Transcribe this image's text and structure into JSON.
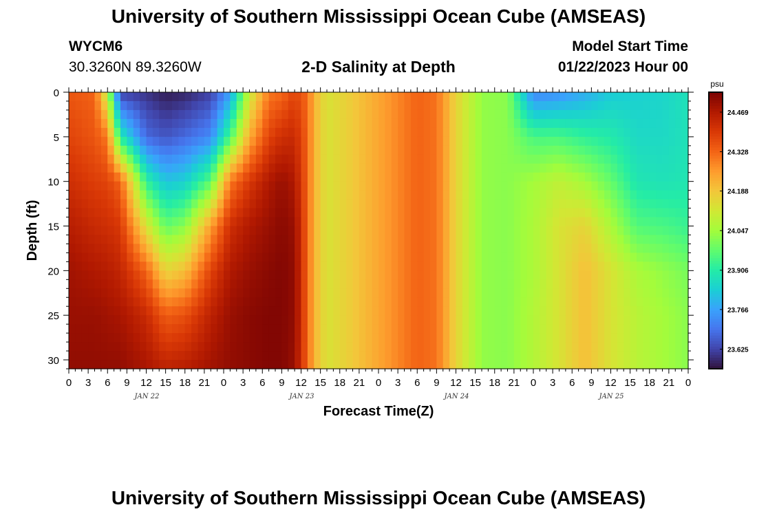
{
  "header": {
    "title": "University of Southern Mississippi Ocean Cube (AMSEAS)",
    "station_id": "WYCM6",
    "station_coords": "30.3260N  89.3260W",
    "plot_title": "2-D Salinity at Depth",
    "start_label": "Model Start Time",
    "start_value": "01/22/2023 Hour 00"
  },
  "footer": {
    "title": "University of Southern Mississippi Ocean Cube (AMSEAS)"
  },
  "chart_data": {
    "type": "heatmap",
    "title": "2-D Salinity at Depth",
    "xlabel": "Forecast Time(Z)",
    "ylabel": "Depth (ft)",
    "units": "psu",
    "x_hours_range": [
      0,
      96
    ],
    "y_depth_range": [
      0,
      31
    ],
    "y_ticks": [
      0,
      5,
      10,
      15,
      20,
      25,
      30
    ],
    "x_tick_labels": [
      "0",
      "3",
      "6",
      "9",
      "12",
      "15",
      "18",
      "21",
      "0",
      "3",
      "6",
      "9",
      "12",
      "15",
      "18",
      "21",
      "0",
      "3",
      "6",
      "9",
      "12",
      "15",
      "18",
      "21",
      "0",
      "3",
      "6",
      "9",
      "12",
      "15",
      "18",
      "21",
      "0"
    ],
    "day_labels": [
      {
        "label": "JAN 22",
        "hour": 12
      },
      {
        "label": "JAN 23",
        "hour": 36
      },
      {
        "label": "JAN 24",
        "hour": 60
      },
      {
        "label": "JAN 25",
        "hour": 84
      }
    ],
    "colorbar_ticks": [
      "24.469",
      "24.328",
      "24.188",
      "24.047",
      "23.906",
      "23.766",
      "23.625"
    ],
    "colorbar_tick_values": [
      24.469,
      24.328,
      24.188,
      24.047,
      23.906,
      23.766,
      23.625
    ],
    "value_range": [
      23.555,
      24.54
    ],
    "colormap": [
      "#30123b",
      "#4145ab",
      "#4675ed",
      "#39a2fc",
      "#1bcfd4",
      "#24eca6",
      "#61fc6c",
      "#a4fc3b",
      "#d1e834",
      "#f3c63a",
      "#fe9b2d",
      "#f36315",
      "#d93806",
      "#b11901",
      "#7a0403"
    ],
    "surface_profile": [
      {
        "hour": 0,
        "values": [
          24.35,
          24.38,
          24.42,
          24.46,
          24.49,
          24.5,
          24.51
        ]
      },
      {
        "hour": 4,
        "values": [
          24.33,
          24.35,
          24.39,
          24.43,
          24.47,
          24.5,
          24.51
        ]
      },
      {
        "hour": 6,
        "values": [
          24.08,
          24.3,
          24.38,
          24.42,
          24.46,
          24.49,
          24.51
        ]
      },
      {
        "hour": 8,
        "values": [
          23.62,
          23.9,
          24.33,
          24.4,
          24.44,
          24.48,
          24.51
        ]
      },
      {
        "hour": 12,
        "values": [
          23.6,
          23.68,
          23.92,
          24.13,
          24.33,
          24.43,
          24.48
        ]
      },
      {
        "hour": 15,
        "values": [
          23.57,
          23.65,
          23.82,
          23.98,
          24.16,
          24.34,
          24.45
        ]
      },
      {
        "hour": 18,
        "values": [
          23.58,
          23.68,
          23.84,
          24.02,
          24.2,
          24.36,
          24.46
        ]
      },
      {
        "hour": 22,
        "values": [
          23.62,
          23.73,
          23.97,
          24.25,
          24.38,
          24.45,
          24.49
        ]
      },
      {
        "hour": 25,
        "values": [
          23.76,
          23.95,
          24.3,
          24.42,
          24.47,
          24.5,
          24.51
        ]
      },
      {
        "hour": 28,
        "values": [
          24.1,
          24.23,
          24.4,
          24.47,
          24.5,
          24.52,
          24.52
        ]
      },
      {
        "hour": 31,
        "values": [
          24.3,
          24.38,
          24.47,
          24.5,
          24.52,
          24.53,
          24.53
        ]
      },
      {
        "hour": 33,
        "values": [
          24.32,
          24.42,
          24.5,
          24.52,
          24.53,
          24.53,
          24.53
        ]
      },
      {
        "hour": 35,
        "values": [
          24.38,
          24.43,
          24.47,
          24.5,
          24.51,
          24.51,
          24.5
        ]
      },
      {
        "hour": 37,
        "values": [
          24.32,
          24.33,
          24.33,
          24.33,
          24.33,
          24.33,
          24.33
        ]
      },
      {
        "hour": 38,
        "values": [
          24.22,
          24.22,
          24.22,
          24.22,
          24.22,
          24.22,
          24.22
        ]
      },
      {
        "hour": 40,
        "values": [
          24.13,
          24.13,
          24.13,
          24.13,
          24.13,
          24.13,
          24.13
        ]
      },
      {
        "hour": 44,
        "values": [
          24.18,
          24.18,
          24.18,
          24.18,
          24.18,
          24.18,
          24.18
        ]
      },
      {
        "hour": 48,
        "values": [
          24.24,
          24.24,
          24.24,
          24.24,
          24.24,
          24.24,
          24.24
        ]
      },
      {
        "hour": 54,
        "values": [
          24.33,
          24.33,
          24.33,
          24.33,
          24.33,
          24.33,
          24.33
        ]
      },
      {
        "hour": 57,
        "values": [
          24.31,
          24.31,
          24.31,
          24.31,
          24.31,
          24.31,
          24.31
        ]
      },
      {
        "hour": 60,
        "values": [
          24.16,
          24.16,
          24.16,
          24.16,
          24.16,
          24.16,
          24.16
        ]
      },
      {
        "hour": 64,
        "values": [
          24.03,
          24.03,
          24.03,
          24.03,
          24.03,
          24.03,
          24.03
        ]
      },
      {
        "hour": 68,
        "values": [
          24.02,
          24.02,
          24.02,
          24.02,
          24.02,
          24.02,
          24.02
        ]
      },
      {
        "hour": 72,
        "values": [
          23.72,
          23.95,
          24.05,
          24.06,
          24.06,
          24.07,
          24.07
        ]
      },
      {
        "hour": 76,
        "values": [
          23.74,
          23.95,
          24.09,
          24.13,
          24.13,
          24.13,
          24.13
        ]
      },
      {
        "hour": 80,
        "values": [
          23.78,
          23.92,
          24.05,
          24.16,
          24.2,
          24.2,
          24.2
        ]
      },
      {
        "hour": 84,
        "values": [
          23.83,
          23.9,
          23.98,
          24.06,
          24.13,
          24.13,
          24.13
        ]
      },
      {
        "hour": 88,
        "values": [
          23.84,
          23.86,
          23.89,
          23.96,
          24.06,
          24.08,
          24.08
        ]
      },
      {
        "hour": 92,
        "values": [
          23.85,
          23.86,
          23.88,
          23.95,
          24.03,
          24.05,
          24.05
        ]
      },
      {
        "hour": 96,
        "values": [
          23.88,
          23.88,
          23.89,
          23.93,
          24.0,
          24.02,
          24.02
        ]
      }
    ],
    "profile_depths": [
      0,
      5,
      10,
      15,
      20,
      25,
      31
    ]
  }
}
